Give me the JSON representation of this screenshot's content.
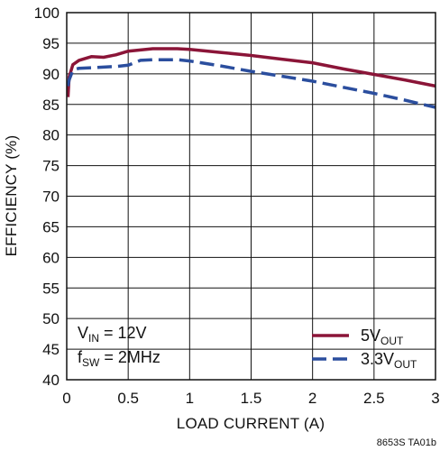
{
  "chart_data": {
    "type": "line",
    "xlabel": "LOAD CURRENT (A)",
    "ylabel": "EFFICIENCY (%)",
    "xlim": [
      0,
      3
    ],
    "ylim": [
      40,
      100
    ],
    "xticks": [
      0,
      0.5,
      1,
      1.5,
      2,
      2.5,
      3
    ],
    "xtick_labels": [
      "0",
      "0.5",
      "1",
      "1.5",
      "2",
      "2.5",
      "3"
    ],
    "yticks": [
      40,
      45,
      50,
      55,
      60,
      65,
      70,
      75,
      80,
      85,
      90,
      95,
      100
    ],
    "ytick_labels": [
      "40",
      "45",
      "50",
      "55",
      "60",
      "65",
      "70",
      "75",
      "80",
      "85",
      "90",
      "95",
      "100"
    ],
    "grid": true,
    "legend_position": "bottom-right",
    "series": [
      {
        "name": "5V",
        "name_sub": "OUT",
        "color": "#8B1538",
        "style": "solid",
        "x": [
          0.01,
          0.02,
          0.05,
          0.1,
          0.2,
          0.3,
          0.4,
          0.5,
          0.6,
          0.7,
          0.8,
          0.9,
          1.0,
          1.25,
          1.5,
          1.75,
          2.0,
          2.25,
          2.5,
          2.75,
          3.0
        ],
        "y": [
          86.2,
          89.5,
          91.5,
          92.2,
          92.8,
          92.7,
          93.1,
          93.7,
          93.9,
          94.1,
          94.1,
          94.1,
          94.0,
          93.5,
          93.0,
          92.4,
          91.8,
          90.8,
          89.9,
          89.0,
          88.0
        ]
      },
      {
        "name": "3.3V",
        "name_sub": "OUT",
        "color": "#2B4E9E",
        "style": "dashed",
        "x": [
          0.01,
          0.02,
          0.05,
          0.1,
          0.2,
          0.3,
          0.4,
          0.5,
          0.6,
          0.7,
          0.8,
          0.9,
          1.0,
          1.25,
          1.5,
          1.75,
          2.0,
          2.25,
          2.5,
          2.75,
          3.0
        ],
        "y": [
          88.0,
          89.0,
          90.6,
          90.9,
          91.0,
          91.1,
          91.2,
          91.4,
          92.2,
          92.3,
          92.3,
          92.3,
          92.1,
          91.3,
          90.4,
          89.6,
          88.8,
          87.8,
          86.8,
          85.7,
          84.5
        ]
      }
    ],
    "annotations": {
      "vin_label": "V",
      "vin_sub": "IN",
      "vin_value": " = 12V",
      "fsw_label": "f",
      "fsw_sub": "SW",
      "fsw_value": " = 2MHz"
    },
    "footnote": "8653S TA01b"
  }
}
